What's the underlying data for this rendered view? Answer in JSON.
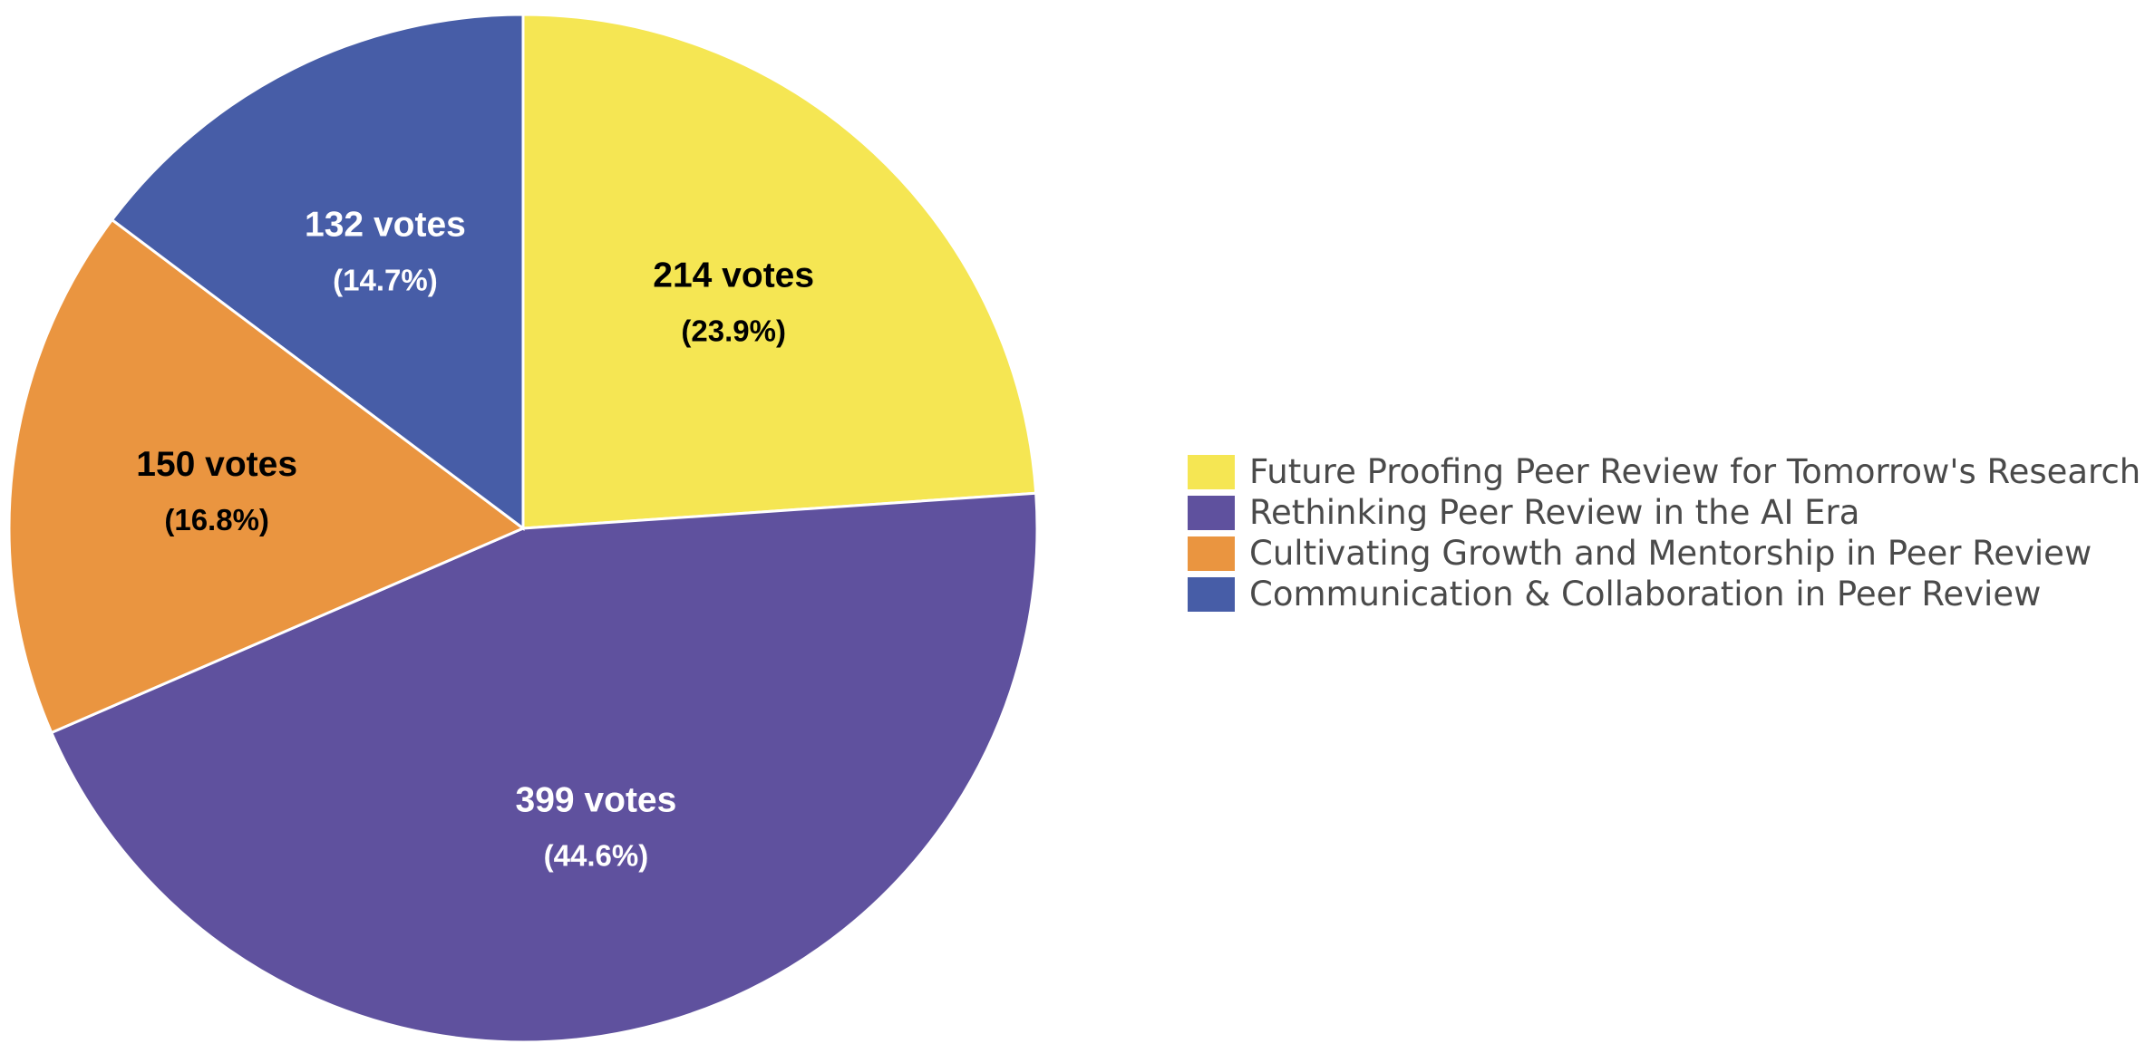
{
  "chart_data": {
    "type": "pie",
    "slices": [
      {
        "label": "Future Proofing Peer Review for Tomorrow's Research",
        "value": 214,
        "votes_text": "214 votes",
        "percent_text": "(23.9%)",
        "color": "#F5E653",
        "text_color": "#000000"
      },
      {
        "label": "Rethinking Peer Review in the AI Era",
        "value": 399,
        "votes_text": "399 votes",
        "percent_text": "(44.6%)",
        "color": "#5F519E",
        "text_color": "#FFFFFF"
      },
      {
        "label": "Cultivating Growth and Mentorship in Peer Review",
        "value": 150,
        "votes_text": "150 votes",
        "percent_text": "(16.8%)",
        "color": "#EA9540",
        "text_color": "#000000"
      },
      {
        "label": "Communication & Collaboration in Peer Review",
        "value": 132,
        "votes_text": "132 votes",
        "percent_text": "(14.7%)",
        "color": "#475DA7",
        "text_color": "#FFFFFF"
      }
    ],
    "start": "12 o'clock",
    "direction": "clockwise",
    "legend_position": "right"
  }
}
